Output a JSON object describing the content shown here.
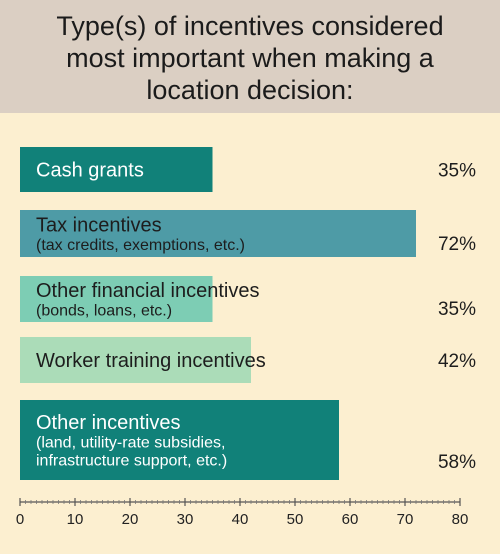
{
  "chart_data": {
    "type": "bar",
    "orientation": "horizontal",
    "title": "Type(s) of incentives considered most important when making a location decision:",
    "categories": [
      "Cash grants",
      "Tax incentives (tax credits, exemptions, etc.)",
      "Other financial incentives (bonds, loans, etc.)",
      "Worker training incentives",
      "Other incentives (land, utility-rate subsidies, infrastructure support, etc.)"
    ],
    "bars": [
      {
        "label_lines": [
          "Cash grants"
        ],
        "value": 35,
        "value_label": "35%",
        "color": "#118179",
        "text_color": "#ffffff"
      },
      {
        "label_lines": [
          "Tax incentives",
          "(tax credits, exemptions, etc.)"
        ],
        "value": 72,
        "value_label": "72%",
        "color": "#4e9ba6",
        "text_color": "#1d1d1d"
      },
      {
        "label_lines": [
          "Other financial incentives",
          "(bonds, loans, etc.)"
        ],
        "value": 35,
        "value_label": "35%",
        "color": "#7dcdb4",
        "text_color": "#1d1d1d"
      },
      {
        "label_lines": [
          "Worker training incentives"
        ],
        "value": 42,
        "value_label": "42%",
        "color": "#abdcb8",
        "text_color": "#1d1d1d"
      },
      {
        "label_lines": [
          "Other incentives",
          "(land, utility-rate subsidies,",
          "infrastructure support, etc.)"
        ],
        "value": 58,
        "value_label": "58%",
        "color": "#118179",
        "text_color": "#ffffff"
      }
    ],
    "xlim": [
      0,
      80
    ],
    "x_ticks": [
      "0",
      "10",
      "20",
      "30",
      "40",
      "50",
      "60",
      "70",
      "80"
    ],
    "grid": false,
    "legend": "none"
  }
}
